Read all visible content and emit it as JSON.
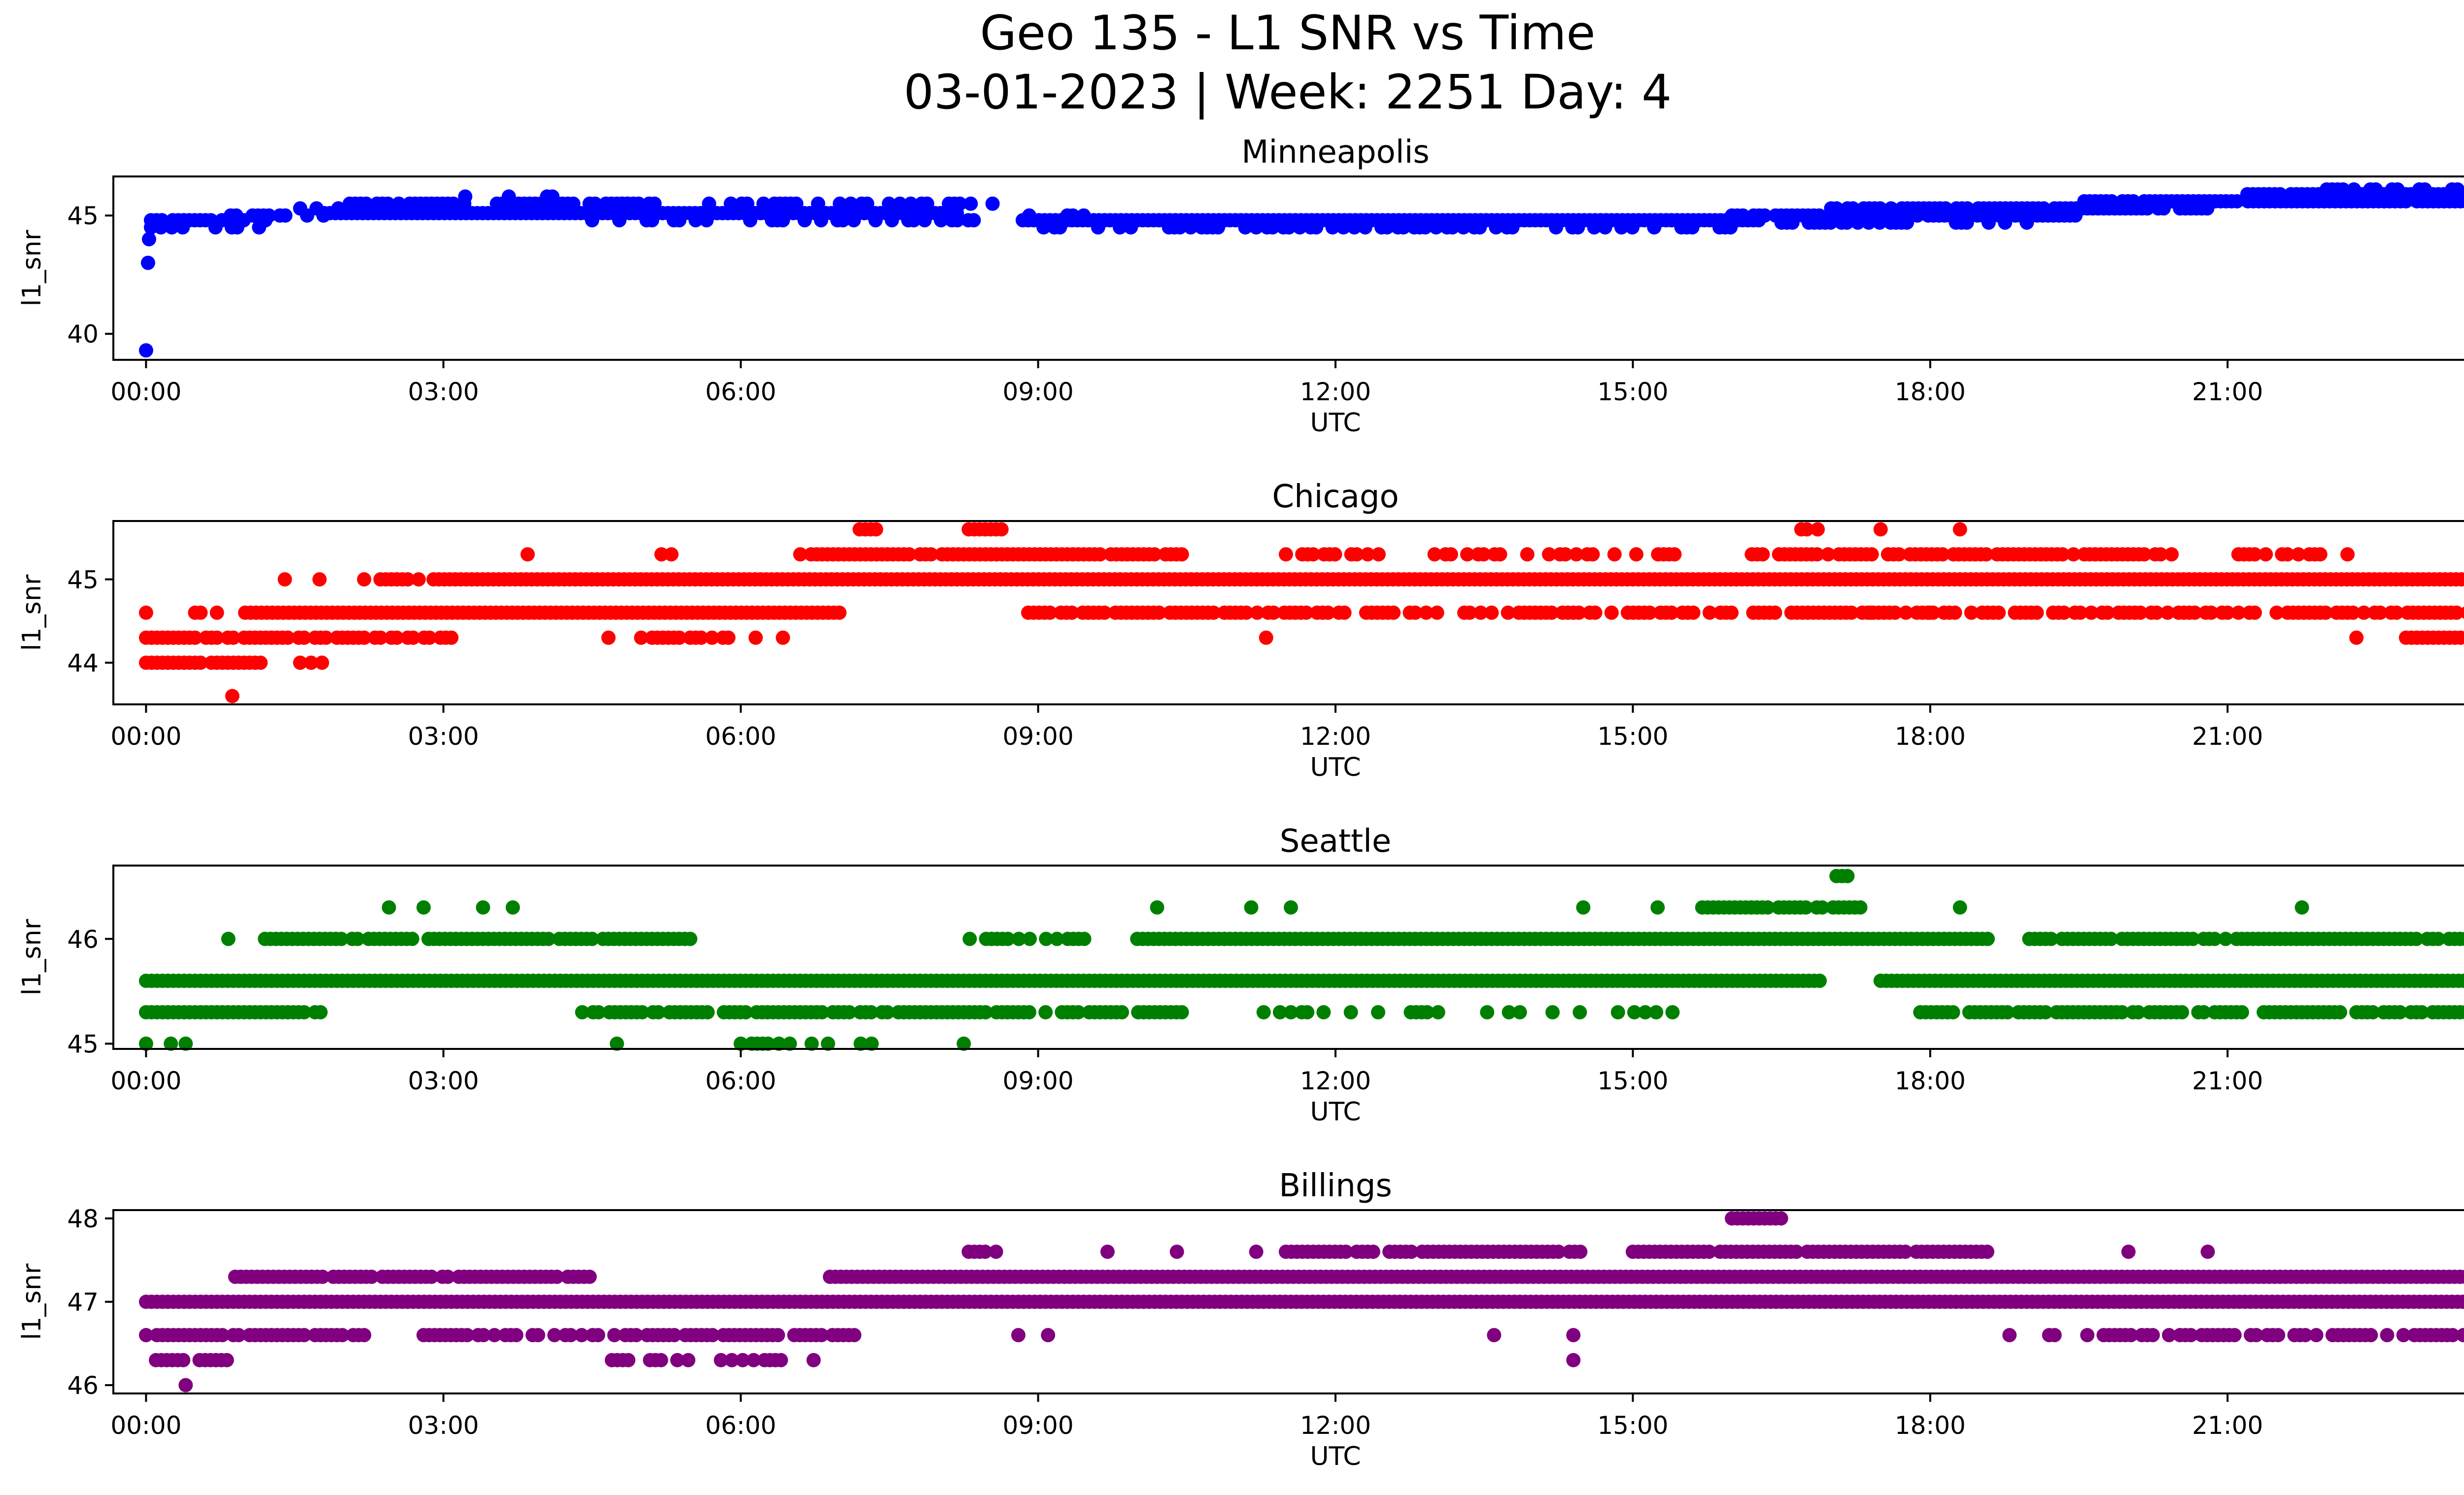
{
  "figure": {
    "title_line1": "Geo 135 - L1 SNR vs Time",
    "title_line2": "03-01-2023 | Week: 2251 Day: 4"
  },
  "chart_data": [
    {
      "type": "scatter",
      "title": "Minneapolis",
      "xlabel": "UTC",
      "ylabel": "l1_snr",
      "color": "#0000ff",
      "xlim": [
        -0.33,
        24.33
      ],
      "ylim": [
        38.9,
        46.65
      ],
      "xticks": [
        "00:00",
        "03:00",
        "06:00",
        "09:00",
        "12:00",
        "15:00",
        "18:00",
        "21:00",
        "00:00"
      ],
      "yticks": [
        40,
        45
      ],
      "grid": false,
      "outliers": [
        [
          0.0,
          39.3
        ],
        [
          0.02,
          43.0
        ],
        [
          0.03,
          44.0
        ],
        [
          0.05,
          44.5
        ]
      ],
      "level_runs": [
        {
          "y": 44.8,
          "from": 0.05,
          "to": 1.3,
          "density": 0.8
        },
        {
          "y": 44.5,
          "from": 0.15,
          "to": 1.3,
          "density": 0.3
        },
        {
          "y": 45.0,
          "from": 0.8,
          "to": 1.8,
          "density": 0.5
        },
        {
          "y": 45.3,
          "from": 1.5,
          "to": 2.3,
          "density": 0.4
        },
        {
          "y": 45.1,
          "from": 1.8,
          "to": 8.2,
          "density": 1.0
        },
        {
          "y": 45.5,
          "from": 2.0,
          "to": 5.0,
          "density": 0.75
        },
        {
          "y": 45.8,
          "from": 3.0,
          "to": 4.4,
          "density": 0.15
        },
        {
          "y": 44.8,
          "from": 4.5,
          "to": 8.9,
          "density": 0.35
        },
        {
          "y": 45.5,
          "from": 4.8,
          "to": 8.7,
          "density": 0.5
        },
        {
          "y": 44.8,
          "from": 8.9,
          "to": 16.3,
          "density": 1.0
        },
        {
          "y": 44.5,
          "from": 9.0,
          "to": 16.0,
          "density": 0.5
        },
        {
          "y": 45.0,
          "from": 8.8,
          "to": 9.5,
          "density": 0.5
        },
        {
          "y": 45.0,
          "from": 16.0,
          "to": 19.5,
          "density": 0.9
        },
        {
          "y": 44.7,
          "from": 16.5,
          "to": 19.0,
          "density": 0.4
        },
        {
          "y": 45.3,
          "from": 17.0,
          "to": 20.8,
          "density": 0.9
        },
        {
          "y": 45.6,
          "from": 19.5,
          "to": 24.0,
          "density": 0.9
        },
        {
          "y": 45.9,
          "from": 21.2,
          "to": 24.0,
          "density": 0.9
        },
        {
          "y": 46.1,
          "from": 22.0,
          "to": 23.5,
          "density": 0.35
        }
      ]
    },
    {
      "type": "scatter",
      "title": "Chicago",
      "xlabel": "UTC",
      "ylabel": "l1_snr",
      "color": "#ff0000",
      "xlim": [
        -0.33,
        24.33
      ],
      "ylim": [
        43.5,
        45.7
      ],
      "xticks": [
        "00:00",
        "03:00",
        "06:00",
        "09:00",
        "12:00",
        "15:00",
        "18:00",
        "21:00",
        "00:00"
      ],
      "yticks": [
        44,
        45
      ],
      "grid": false,
      "outliers": [
        [
          0.87,
          43.6
        ],
        [
          1.4,
          45.0
        ],
        [
          1.75,
          45.0
        ],
        [
          3.85,
          45.3
        ],
        [
          5.2,
          45.3
        ],
        [
          5.3,
          45.3
        ],
        [
          11.3,
          44.3
        ],
        [
          22.3,
          44.3
        ],
        [
          18.3,
          45.6
        ],
        [
          17.5,
          45.6
        ],
        [
          17.4,
          44.6
        ],
        [
          18.0,
          44.6
        ]
      ],
      "level_runs": [
        {
          "y": 44.0,
          "from": 0.0,
          "to": 1.2,
          "density": 0.8
        },
        {
          "y": 44.3,
          "from": 0.0,
          "to": 3.1,
          "density": 0.85
        },
        {
          "y": 44.6,
          "from": 0.0,
          "to": 0.9,
          "density": 0.3
        },
        {
          "y": 44.0,
          "from": 1.5,
          "to": 1.8,
          "density": 0.5
        },
        {
          "y": 44.6,
          "from": 1.0,
          "to": 7.0,
          "density": 1.0
        },
        {
          "y": 45.0,
          "from": 2.2,
          "to": 2.8,
          "density": 0.8
        },
        {
          "y": 45.0,
          "from": 2.9,
          "to": 24.0,
          "density": 1.0
        },
        {
          "y": 44.3,
          "from": 4.5,
          "to": 6.6,
          "density": 0.35
        },
        {
          "y": 45.3,
          "from": 6.6,
          "to": 10.5,
          "density": 0.9
        },
        {
          "y": 45.6,
          "from": 7.2,
          "to": 7.4,
          "density": 0.8
        },
        {
          "y": 45.6,
          "from": 8.3,
          "to": 8.7,
          "density": 0.8
        },
        {
          "y": 44.6,
          "from": 8.9,
          "to": 24.0,
          "density": 0.75
        },
        {
          "y": 45.3,
          "from": 11.5,
          "to": 12.5,
          "density": 0.5
        },
        {
          "y": 45.3,
          "from": 13.0,
          "to": 15.5,
          "density": 0.55
        },
        {
          "y": 45.3,
          "from": 16.2,
          "to": 20.6,
          "density": 0.85
        },
        {
          "y": 45.6,
          "from": 16.7,
          "to": 16.9,
          "density": 0.8
        },
        {
          "y": 45.3,
          "from": 21.0,
          "to": 22.3,
          "density": 0.6
        },
        {
          "y": 44.3,
          "from": 22.8,
          "to": 24.0,
          "density": 0.8
        }
      ]
    },
    {
      "type": "scatter",
      "title": "Seattle",
      "xlabel": "UTC",
      "ylabel": "l1_snr",
      "color": "#008000",
      "xlim": [
        -0.33,
        24.33
      ],
      "ylim": [
        44.95,
        46.7
      ],
      "xticks": [
        "00:00",
        "03:00",
        "06:00",
        "09:00",
        "12:00",
        "15:00",
        "18:00",
        "21:00",
        "00:00"
      ],
      "yticks": [
        45,
        46
      ],
      "grid": false,
      "outliers": [
        [
          0.0,
          45.0
        ],
        [
          0.25,
          45.0
        ],
        [
          0.4,
          45.0
        ],
        [
          4.75,
          45.0
        ],
        [
          8.25,
          45.0
        ],
        [
          24.0,
          45.0
        ],
        [
          0.83,
          46.0
        ],
        [
          2.45,
          46.3
        ],
        [
          2.8,
          46.3
        ],
        [
          3.4,
          46.3
        ],
        [
          3.7,
          46.3
        ],
        [
          10.2,
          46.3
        ],
        [
          11.15,
          46.3
        ],
        [
          11.55,
          46.3
        ],
        [
          14.5,
          46.3
        ],
        [
          15.25,
          46.3
        ],
        [
          18.3,
          46.3
        ],
        [
          21.75,
          46.3
        ]
      ],
      "level_runs": [
        {
          "y": 45.3,
          "from": 0.0,
          "to": 1.8,
          "density": 0.95
        },
        {
          "y": 45.6,
          "from": 0.0,
          "to": 16.9,
          "density": 1.0
        },
        {
          "y": 46.0,
          "from": 1.2,
          "to": 5.5,
          "density": 0.9
        },
        {
          "y": 45.3,
          "from": 4.4,
          "to": 10.5,
          "density": 0.85
        },
        {
          "y": 45.0,
          "from": 6.0,
          "to": 7.4,
          "density": 0.55
        },
        {
          "y": 46.0,
          "from": 8.2,
          "to": 9.6,
          "density": 0.5
        },
        {
          "y": 46.0,
          "from": 10.0,
          "to": 18.6,
          "density": 1.0
        },
        {
          "y": 45.3,
          "from": 11.0,
          "to": 15.6,
          "density": 0.35
        },
        {
          "y": 46.3,
          "from": 15.7,
          "to": 17.3,
          "density": 0.9
        },
        {
          "y": 46.6,
          "from": 17.0,
          "to": 17.2,
          "density": 0.9
        },
        {
          "y": 45.6,
          "from": 17.5,
          "to": 24.0,
          "density": 1.0
        },
        {
          "y": 45.3,
          "from": 17.9,
          "to": 24.0,
          "density": 0.85
        },
        {
          "y": 46.0,
          "from": 19.0,
          "to": 23.9,
          "density": 0.9
        }
      ]
    },
    {
      "type": "scatter",
      "title": "Billings",
      "xlabel": "UTC",
      "ylabel": "l1_snr",
      "color": "#800080",
      "xlim": [
        -0.33,
        24.33
      ],
      "ylim": [
        45.9,
        48.1
      ],
      "xticks": [
        "00:00",
        "03:00",
        "06:00",
        "09:00",
        "12:00",
        "15:00",
        "18:00",
        "21:00",
        "00:00"
      ],
      "yticks": [
        46,
        47,
        48
      ],
      "grid": false,
      "outliers": [
        [
          0.4,
          46.0
        ],
        [
          8.8,
          46.6
        ],
        [
          9.1,
          46.6
        ],
        [
          13.6,
          46.6
        ],
        [
          14.4,
          46.6
        ],
        [
          14.4,
          46.3
        ],
        [
          18.8,
          46.6
        ],
        [
          9.7,
          47.6
        ],
        [
          10.4,
          47.6
        ],
        [
          11.2,
          47.6
        ],
        [
          20.0,
          47.6
        ],
        [
          20.8,
          47.6
        ]
      ],
      "level_runs": [
        {
          "y": 46.6,
          "from": 0.0,
          "to": 2.2,
          "density": 0.9
        },
        {
          "y": 46.3,
          "from": 0.1,
          "to": 0.9,
          "density": 0.7
        },
        {
          "y": 47.0,
          "from": 0.0,
          "to": 24.0,
          "density": 1.0
        },
        {
          "y": 47.3,
          "from": 0.9,
          "to": 4.5,
          "density": 0.9
        },
        {
          "y": 46.6,
          "from": 2.8,
          "to": 7.3,
          "density": 0.85
        },
        {
          "y": 46.3,
          "from": 4.7,
          "to": 6.8,
          "density": 0.5
        },
        {
          "y": 47.3,
          "from": 6.9,
          "to": 23.8,
          "density": 1.0
        },
        {
          "y": 47.6,
          "from": 8.3,
          "to": 8.7,
          "density": 0.6
        },
        {
          "y": 47.6,
          "from": 11.5,
          "to": 14.5,
          "density": 0.85
        },
        {
          "y": 47.6,
          "from": 15.0,
          "to": 18.6,
          "density": 0.9
        },
        {
          "y": 48.0,
          "from": 16.0,
          "to": 16.5,
          "density": 0.9
        },
        {
          "y": 46.6,
          "from": 19.2,
          "to": 24.0,
          "density": 0.55
        }
      ]
    }
  ]
}
